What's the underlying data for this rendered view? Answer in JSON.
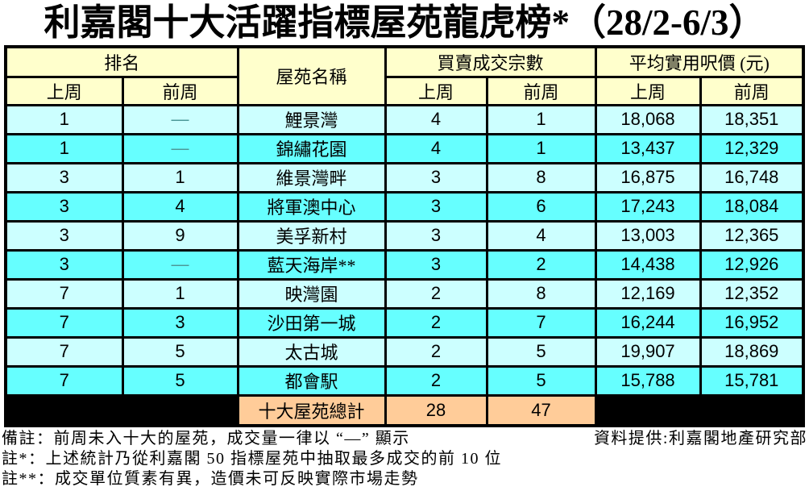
{
  "title": "利嘉閣十大活躍指標屋苑龍虎榜*（28/2-6/3）",
  "table": {
    "header": {
      "rank": "排名",
      "estate": "屋苑名稱",
      "transactions": "買賣成交宗數",
      "price": "平均實用呎價 (元)",
      "last_week": "上周",
      "prev_week": "前周"
    },
    "rows": [
      {
        "rank_last": "1",
        "rank_prev": "—",
        "estate": "鯉景灣",
        "tx_last": "4",
        "tx_prev": "1",
        "price_last": "18,068",
        "price_prev": "18,351"
      },
      {
        "rank_last": "1",
        "rank_prev": "—",
        "estate": "錦繡花園",
        "tx_last": "4",
        "tx_prev": "1",
        "price_last": "13,437",
        "price_prev": "12,329"
      },
      {
        "rank_last": "3",
        "rank_prev": "1",
        "estate": "維景灣畔",
        "tx_last": "3",
        "tx_prev": "8",
        "price_last": "16,875",
        "price_prev": "16,748"
      },
      {
        "rank_last": "3",
        "rank_prev": "4",
        "estate": "將軍澳中心",
        "tx_last": "3",
        "tx_prev": "6",
        "price_last": "17,243",
        "price_prev": "18,084"
      },
      {
        "rank_last": "3",
        "rank_prev": "9",
        "estate": "美孚新村",
        "tx_last": "3",
        "tx_prev": "4",
        "price_last": "13,003",
        "price_prev": "12,365"
      },
      {
        "rank_last": "3",
        "rank_prev": "—",
        "estate": "藍天海岸**",
        "tx_last": "3",
        "tx_prev": "2",
        "price_last": "14,438",
        "price_prev": "12,926"
      },
      {
        "rank_last": "7",
        "rank_prev": "1",
        "estate": "映灣園",
        "tx_last": "2",
        "tx_prev": "8",
        "price_last": "12,169",
        "price_prev": "12,352"
      },
      {
        "rank_last": "7",
        "rank_prev": "3",
        "estate": "沙田第一城",
        "tx_last": "2",
        "tx_prev": "7",
        "price_last": "16,244",
        "price_prev": "16,952"
      },
      {
        "rank_last": "7",
        "rank_prev": "5",
        "estate": "太古城",
        "tx_last": "2",
        "tx_prev": "5",
        "price_last": "19,907",
        "price_prev": "18,869"
      },
      {
        "rank_last": "7",
        "rank_prev": "5",
        "estate": "都會駅",
        "tx_last": "2",
        "tx_prev": "5",
        "price_last": "15,788",
        "price_prev": "15,781"
      }
    ],
    "total": {
      "label": "十大屋苑總計",
      "tx_last": "28",
      "tx_prev": "47"
    }
  },
  "footnotes": {
    "note1_left": "備註：前周未入十大的屋苑，成交量一律以 “—” 顯示",
    "note1_right": "資料提供:利嘉閣地產研究部",
    "note2": "註*：上述統計乃從利嘉閣 50 指標屋苑中抽取最多成交的前 10 位",
    "note3": "註**：成交單位質素有異，造價未可反映實際市場走勢"
  },
  "colors": {
    "header_bg": "#FFFFCC",
    "row_light": "#CCFFFF",
    "row_dark": "#66FFFF",
    "total_bg": "#FFCC99",
    "border": "#000000",
    "dash_text": "#4D9999"
  }
}
